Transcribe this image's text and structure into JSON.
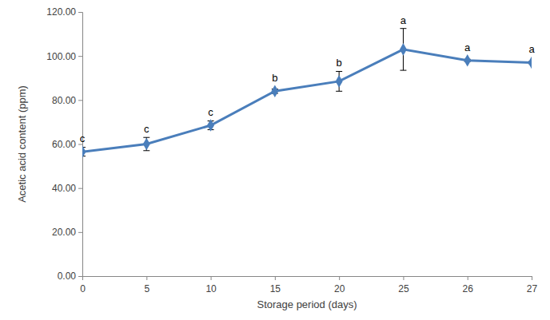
{
  "chart_data": {
    "type": "line",
    "x_label": "Storage period (days)",
    "y_label": "Acetic acid content (ppm)",
    "categories": [
      "0",
      "5",
      "10",
      "15",
      "20",
      "25",
      "26",
      "27"
    ],
    "values": [
      56.5,
      60.0,
      68.5,
      84.0,
      88.5,
      103.0,
      98.0,
      97.0
    ],
    "errors": [
      2.0,
      3.0,
      2.0,
      1.0,
      4.5,
      9.5,
      0.5,
      0.5
    ],
    "annotations": [
      "c",
      "c",
      "c",
      "b",
      "b",
      "a",
      "a",
      "a"
    ],
    "color": "#4a7ebb",
    "marker": "diamond",
    "grid": false,
    "ylim": [
      0,
      120
    ],
    "yticks": [
      {
        "value": 0,
        "label": "0.00"
      },
      {
        "value": 20,
        "label": "20.00"
      },
      {
        "value": 40,
        "label": "40.00"
      },
      {
        "value": 60,
        "label": "60.00"
      },
      {
        "value": 80,
        "label": "80.00"
      },
      {
        "value": 100,
        "label": "100.00"
      },
      {
        "value": 120,
        "label": "120.00"
      }
    ]
  }
}
